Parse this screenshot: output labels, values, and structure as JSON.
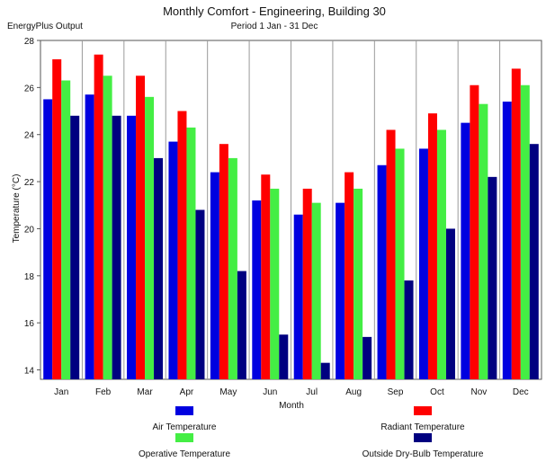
{
  "chart_data": {
    "type": "bar",
    "title": "Monthly Comfort - Engineering, Building 30",
    "subtitle": "Period 1 Jan - 31 Dec",
    "source_label": "EnergyPlus Output",
    "xlabel": "Month",
    "ylabel": "Temperature (°C)",
    "ylim": [
      13.6,
      28
    ],
    "yticks": [
      14,
      16,
      18,
      20,
      22,
      24,
      26,
      28
    ],
    "grid": "vertical",
    "legend_position": "bottom",
    "categories": [
      "Jan",
      "Feb",
      "Mar",
      "Apr",
      "May",
      "Jun",
      "Jul",
      "Aug",
      "Sep",
      "Oct",
      "Nov",
      "Dec"
    ],
    "series": [
      {
        "name": "Air Temperature",
        "color": "#0000e0",
        "values": [
          25.5,
          25.7,
          24.8,
          23.7,
          22.4,
          21.2,
          20.6,
          21.1,
          22.7,
          23.4,
          24.5,
          25.4
        ]
      },
      {
        "name": "Radiant Temperature",
        "color": "#ff0000",
        "values": [
          27.2,
          27.4,
          26.5,
          25.0,
          23.6,
          22.3,
          21.7,
          22.4,
          24.2,
          24.9,
          26.1,
          26.8
        ]
      },
      {
        "name": "Operative Temperature",
        "color": "#44ee44",
        "values": [
          26.3,
          26.5,
          25.6,
          24.3,
          23.0,
          21.7,
          21.1,
          21.7,
          23.4,
          24.2,
          25.3,
          26.1
        ]
      },
      {
        "name": "Outside Dry-Bulb Temperature",
        "color": "#000080",
        "values": [
          24.8,
          24.8,
          23.0,
          20.8,
          18.2,
          15.5,
          14.3,
          15.4,
          17.8,
          20.0,
          22.2,
          23.6
        ]
      }
    ]
  }
}
